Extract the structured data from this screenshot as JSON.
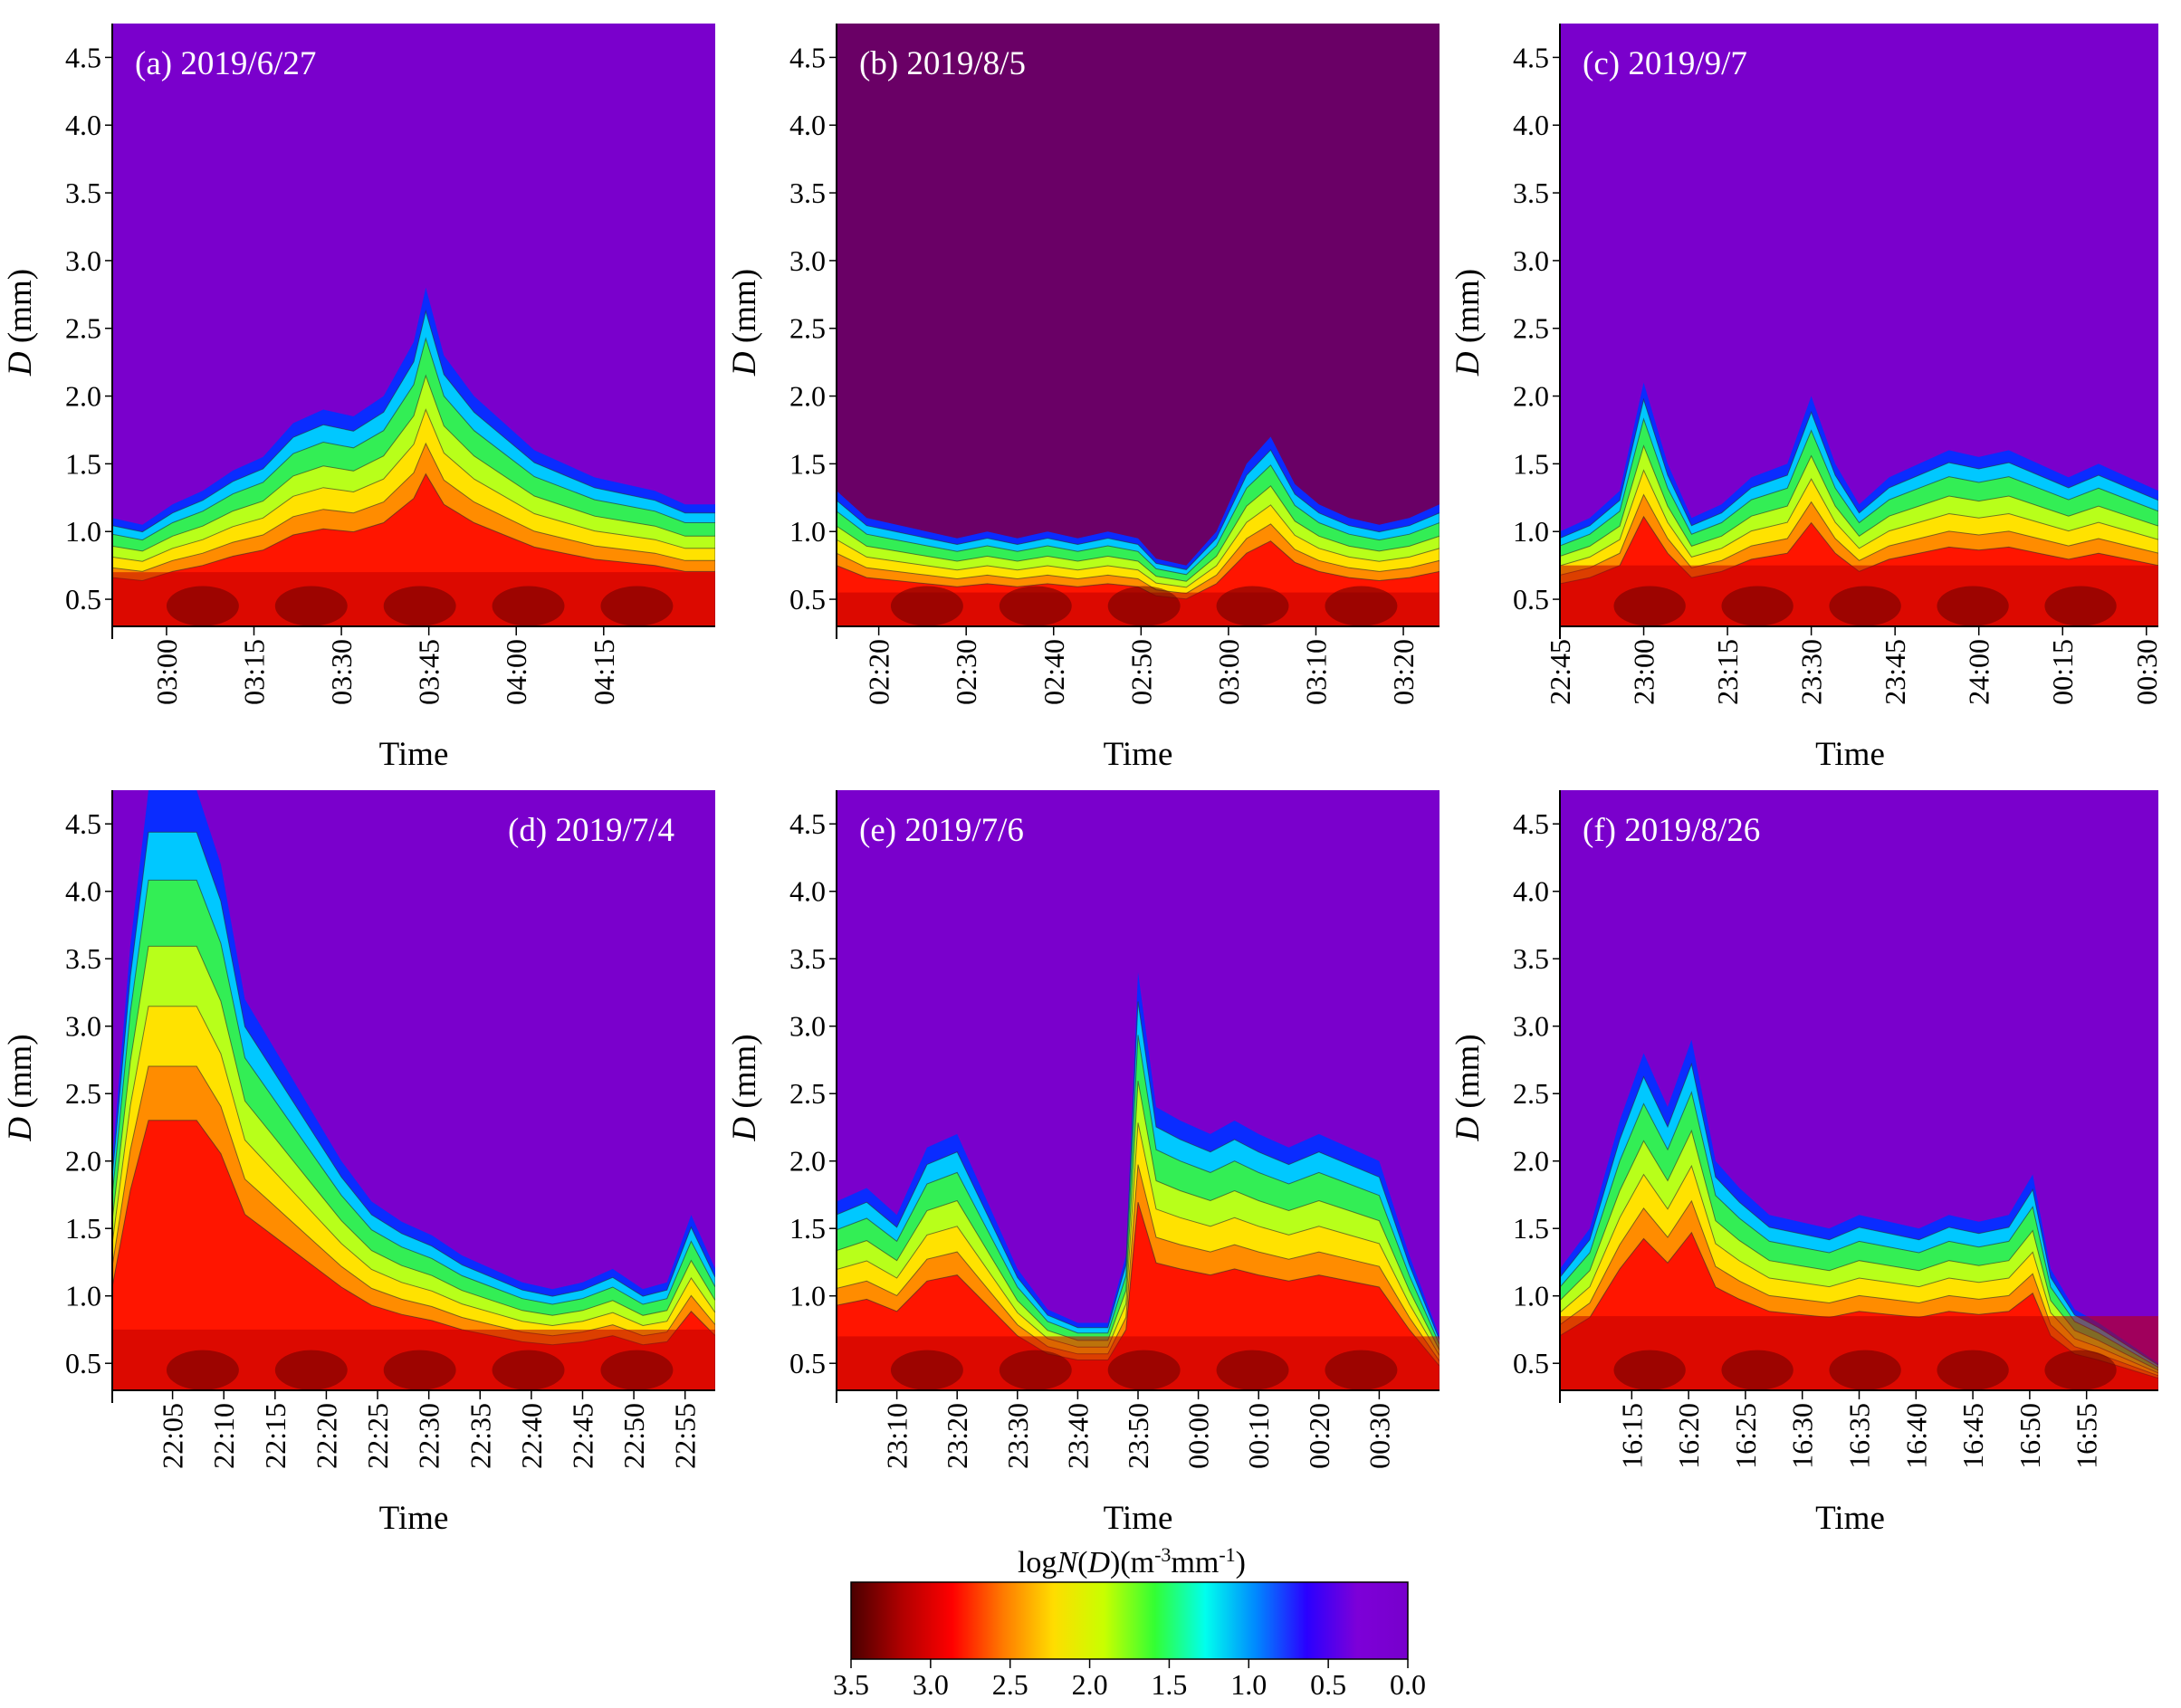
{
  "figure": {
    "y_axis_label": "D (mm)",
    "y_axis_label_italic": "D",
    "y_axis_label_rest": " (mm)",
    "x_axis_label": "Time",
    "colorbar": {
      "title_prefix": "log",
      "title_italic_N": "N",
      "title_mid": "(",
      "title_italic_D": "D",
      "title_units": ")(m",
      "title_sup1": "-3",
      "title_units2": "mm",
      "title_sup2": "-1",
      "title_close": ")",
      "ticks": [
        "3.5",
        "3.0",
        "2.5",
        "2.0",
        "1.5",
        "1.0",
        "0.5",
        "0.0"
      ],
      "colors": [
        "#4a0000",
        "#b00000",
        "#ff0000",
        "#ff7a00",
        "#ffdd00",
        "#c8ff00",
        "#33ff33",
        "#00ffee",
        "#0088ff",
        "#2a00ff",
        "#7d00d8",
        "#7700cc"
      ]
    }
  },
  "chart_data": [
    {
      "type": "heatmap",
      "label": "(a) 2019/6/27",
      "ylabel": "D (mm)",
      "xlabel": "Time",
      "ylim": [
        0.3,
        4.75
      ],
      "yticks": [
        "0.5",
        "1.0",
        "1.5",
        "2.0",
        "2.5",
        "3.0",
        "3.5",
        "4.0",
        "4.5"
      ],
      "xticks": [
        "03:00",
        "03:15",
        "03:30",
        "03:45",
        "04:00",
        "04:15"
      ],
      "xtick_fracs": [
        0.09,
        0.235,
        0.38,
        0.525,
        0.67,
        0.815
      ],
      "profile": [
        [
          0,
          1.1
        ],
        [
          0.05,
          1.05
        ],
        [
          0.1,
          1.2
        ],
        [
          0.15,
          1.3
        ],
        [
          0.2,
          1.45
        ],
        [
          0.25,
          1.55
        ],
        [
          0.3,
          1.8
        ],
        [
          0.35,
          1.9
        ],
        [
          0.4,
          1.85
        ],
        [
          0.45,
          2.0
        ],
        [
          0.5,
          2.4
        ],
        [
          0.52,
          2.8
        ],
        [
          0.55,
          2.3
        ],
        [
          0.6,
          2.0
        ],
        [
          0.65,
          1.8
        ],
        [
          0.7,
          1.6
        ],
        [
          0.75,
          1.5
        ],
        [
          0.8,
          1.4
        ],
        [
          0.85,
          1.35
        ],
        [
          0.9,
          1.3
        ],
        [
          0.95,
          1.2
        ],
        [
          1.0,
          1.2
        ]
      ],
      "core": 0.45
    },
    {
      "type": "heatmap",
      "label": "(b) 2019/8/5",
      "ylabel": "D (mm)",
      "xlabel": "Time",
      "ylim": [
        0.3,
        4.75
      ],
      "yticks": [
        "0.5",
        "1.0",
        "1.5",
        "2.0",
        "2.5",
        "3.0",
        "3.5",
        "4.0",
        "4.5"
      ],
      "xticks": [
        "02:20",
        "02:30",
        "02:40",
        "02:50",
        "03:00",
        "03:10",
        "03:20"
      ],
      "xtick_fracs": [
        0.07,
        0.215,
        0.36,
        0.505,
        0.65,
        0.795,
        0.94
      ],
      "profile": [
        [
          0,
          1.3
        ],
        [
          0.05,
          1.1
        ],
        [
          0.1,
          1.05
        ],
        [
          0.15,
          1.0
        ],
        [
          0.2,
          0.95
        ],
        [
          0.25,
          1.0
        ],
        [
          0.3,
          0.95
        ],
        [
          0.35,
          1.0
        ],
        [
          0.4,
          0.95
        ],
        [
          0.45,
          1.0
        ],
        [
          0.5,
          0.95
        ],
        [
          0.53,
          0.8
        ],
        [
          0.58,
          0.75
        ],
        [
          0.63,
          1.0
        ],
        [
          0.68,
          1.5
        ],
        [
          0.72,
          1.7
        ],
        [
          0.76,
          1.35
        ],
        [
          0.8,
          1.2
        ],
        [
          0.85,
          1.1
        ],
        [
          0.9,
          1.05
        ],
        [
          0.95,
          1.1
        ],
        [
          1.0,
          1.2
        ]
      ],
      "core": 0.3
    },
    {
      "type": "heatmap",
      "label": "(c) 2019/9/7",
      "ylabel": "D (mm)",
      "xlabel": "Time",
      "ylim": [
        0.3,
        4.75
      ],
      "yticks": [
        "0.5",
        "1.0",
        "1.5",
        "2.0",
        "2.5",
        "3.0",
        "3.5",
        "4.0",
        "4.5"
      ],
      "xticks": [
        "22:45",
        "23:00",
        "23:15",
        "23:30",
        "23:45",
        "24:00",
        "00:15",
        "00:30"
      ],
      "xtick_fracs": [
        0.0,
        0.14,
        0.28,
        0.42,
        0.56,
        0.7,
        0.84,
        0.98
      ],
      "profile": [
        [
          0,
          1.0
        ],
        [
          0.05,
          1.1
        ],
        [
          0.1,
          1.3
        ],
        [
          0.14,
          2.1
        ],
        [
          0.18,
          1.5
        ],
        [
          0.22,
          1.1
        ],
        [
          0.27,
          1.2
        ],
        [
          0.32,
          1.4
        ],
        [
          0.38,
          1.5
        ],
        [
          0.42,
          2.0
        ],
        [
          0.46,
          1.5
        ],
        [
          0.5,
          1.2
        ],
        [
          0.55,
          1.4
        ],
        [
          0.6,
          1.5
        ],
        [
          0.65,
          1.6
        ],
        [
          0.7,
          1.55
        ],
        [
          0.75,
          1.6
        ],
        [
          0.8,
          1.5
        ],
        [
          0.85,
          1.4
        ],
        [
          0.9,
          1.5
        ],
        [
          0.95,
          1.4
        ],
        [
          1.0,
          1.3
        ]
      ],
      "core": 0.5
    },
    {
      "type": "heatmap",
      "label": "(d) 2019/7/4",
      "ylabel": "D (mm)",
      "xlabel": "Time",
      "ylim": [
        0.3,
        4.75
      ],
      "yticks": [
        "0.5",
        "1.0",
        "1.5",
        "2.0",
        "2.5",
        "3.0",
        "3.5",
        "4.0",
        "4.5"
      ],
      "xticks": [
        "22:05",
        "22:10",
        "22:15",
        "22:20",
        "22:25",
        "22:30",
        "22:35",
        "22:40",
        "22:45",
        "22:50",
        "22:55"
      ],
      "xtick_fracs": [
        0.1,
        0.185,
        0.27,
        0.355,
        0.44,
        0.525,
        0.61,
        0.695,
        0.78,
        0.865,
        0.95
      ],
      "profile": [
        [
          0,
          2.0
        ],
        [
          0.03,
          3.6
        ],
        [
          0.06,
          4.75
        ],
        [
          0.1,
          4.75
        ],
        [
          0.14,
          4.75
        ],
        [
          0.18,
          4.2
        ],
        [
          0.22,
          3.2
        ],
        [
          0.26,
          2.9
        ],
        [
          0.3,
          2.6
        ],
        [
          0.34,
          2.3
        ],
        [
          0.38,
          2.0
        ],
        [
          0.43,
          1.7
        ],
        [
          0.48,
          1.55
        ],
        [
          0.53,
          1.45
        ],
        [
          0.58,
          1.3
        ],
        [
          0.63,
          1.2
        ],
        [
          0.68,
          1.1
        ],
        [
          0.73,
          1.05
        ],
        [
          0.78,
          1.1
        ],
        [
          0.83,
          1.2
        ],
        [
          0.88,
          1.05
        ],
        [
          0.92,
          1.1
        ],
        [
          0.96,
          1.6
        ],
        [
          1.0,
          1.2
        ]
      ],
      "core": 0.5
    },
    {
      "type": "heatmap",
      "label": "(e) 2019/7/6",
      "ylabel": "D (mm)",
      "xlabel": "Time",
      "ylim": [
        0.3,
        4.75
      ],
      "yticks": [
        "0.5",
        "1.0",
        "1.5",
        "2.0",
        "2.5",
        "3.0",
        "3.5",
        "4.0",
        "4.5"
      ],
      "xticks": [
        "23:10",
        "23:20",
        "23:30",
        "23:40",
        "23:50",
        "00:00",
        "00:10",
        "00:20",
        "00:30"
      ],
      "xtick_fracs": [
        0.1,
        0.2,
        0.3,
        0.4,
        0.5,
        0.6,
        0.7,
        0.8,
        0.9
      ],
      "profile": [
        [
          0,
          1.7
        ],
        [
          0.05,
          1.8
        ],
        [
          0.1,
          1.6
        ],
        [
          0.15,
          2.1
        ],
        [
          0.2,
          2.2
        ],
        [
          0.25,
          1.7
        ],
        [
          0.3,
          1.2
        ],
        [
          0.35,
          0.9
        ],
        [
          0.4,
          0.8
        ],
        [
          0.45,
          0.8
        ],
        [
          0.48,
          1.3
        ],
        [
          0.5,
          3.4
        ],
        [
          0.53,
          2.4
        ],
        [
          0.57,
          2.3
        ],
        [
          0.62,
          2.2
        ],
        [
          0.66,
          2.3
        ],
        [
          0.7,
          2.2
        ],
        [
          0.75,
          2.1
        ],
        [
          0.8,
          2.2
        ],
        [
          0.85,
          2.1
        ],
        [
          0.9,
          2.0
        ],
        [
          0.95,
          1.3
        ],
        [
          1.0,
          0.7
        ]
      ],
      "core": 0.45
    },
    {
      "type": "heatmap",
      "label": "(f) 2019/8/26",
      "ylabel": "D (mm)",
      "xlabel": "Time",
      "ylim": [
        0.3,
        4.75
      ],
      "yticks": [
        "0.5",
        "1.0",
        "1.5",
        "2.0",
        "2.5",
        "3.0",
        "3.5",
        "4.0",
        "4.5"
      ],
      "xticks": [
        "16:15",
        "16:20",
        "16:25",
        "16:30",
        "16:35",
        "16:40",
        "16:45",
        "16:50",
        "16:55"
      ],
      "xtick_fracs": [
        0.12,
        0.215,
        0.31,
        0.405,
        0.5,
        0.595,
        0.69,
        0.785,
        0.88
      ],
      "profile": [
        [
          0,
          1.2
        ],
        [
          0.05,
          1.5
        ],
        [
          0.1,
          2.3
        ],
        [
          0.14,
          2.8
        ],
        [
          0.18,
          2.4
        ],
        [
          0.22,
          2.9
        ],
        [
          0.26,
          2.0
        ],
        [
          0.3,
          1.8
        ],
        [
          0.35,
          1.6
        ],
        [
          0.4,
          1.55
        ],
        [
          0.45,
          1.5
        ],
        [
          0.5,
          1.6
        ],
        [
          0.55,
          1.55
        ],
        [
          0.6,
          1.5
        ],
        [
          0.65,
          1.6
        ],
        [
          0.7,
          1.55
        ],
        [
          0.75,
          1.6
        ],
        [
          0.79,
          1.9
        ],
        [
          0.82,
          1.2
        ],
        [
          0.86,
          0.9
        ],
        [
          0.9,
          0.8
        ],
        [
          0.95,
          0.65
        ],
        [
          1.0,
          0.5
        ]
      ],
      "core": 0.6
    }
  ]
}
